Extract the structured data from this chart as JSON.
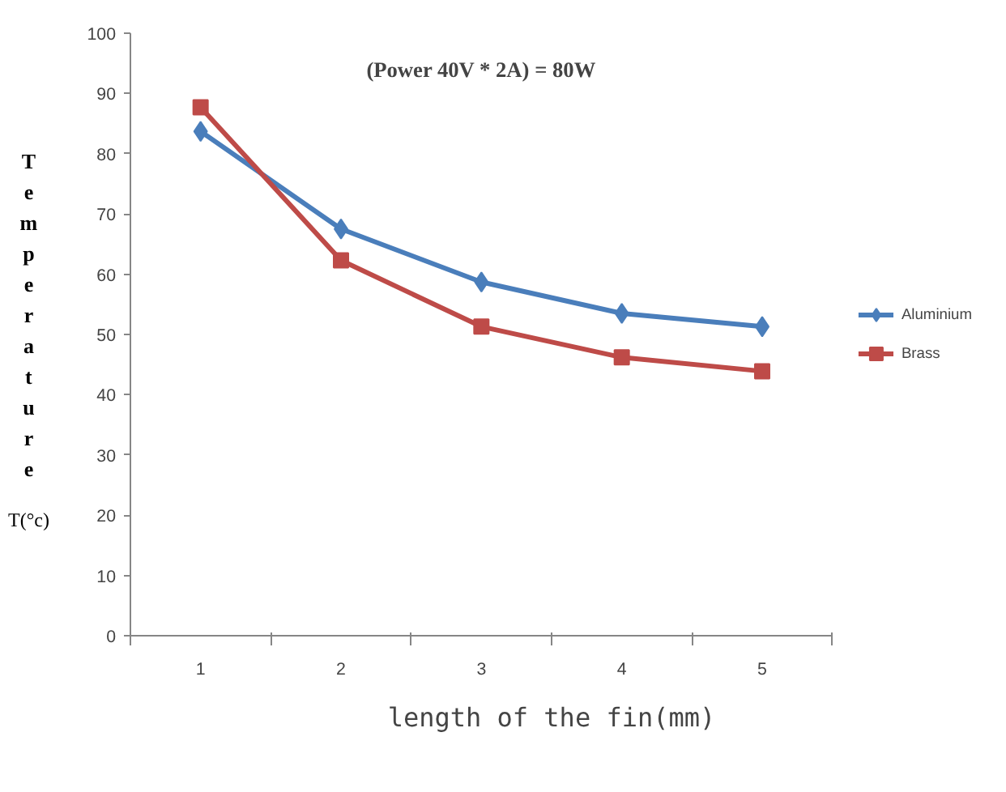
{
  "chart_data": {
    "type": "line",
    "title": "(Power 40V * 2A) = 80W",
    "xlabel": "length of the fin(mm)",
    "ylabel": "Temperature T(°c)",
    "categories": [
      "1",
      "2",
      "3",
      "4",
      "5"
    ],
    "series": [
      {
        "name": "Aluminium",
        "color": "#4a7ebb",
        "marker": "diamond",
        "values": [
          83.7,
          67.5,
          58.7,
          53.5,
          51.3
        ]
      },
      {
        "name": "Brass",
        "color": "#be4b48",
        "marker": "square",
        "values": [
          87.7,
          62.3,
          51.3,
          46.2,
          43.9
        ]
      }
    ],
    "ylim": [
      0,
      100
    ],
    "yticks": [
      0,
      10,
      20,
      30,
      40,
      50,
      60,
      70,
      80,
      90,
      100
    ],
    "grid": false,
    "legend": "right",
    "line_style": "solid"
  }
}
